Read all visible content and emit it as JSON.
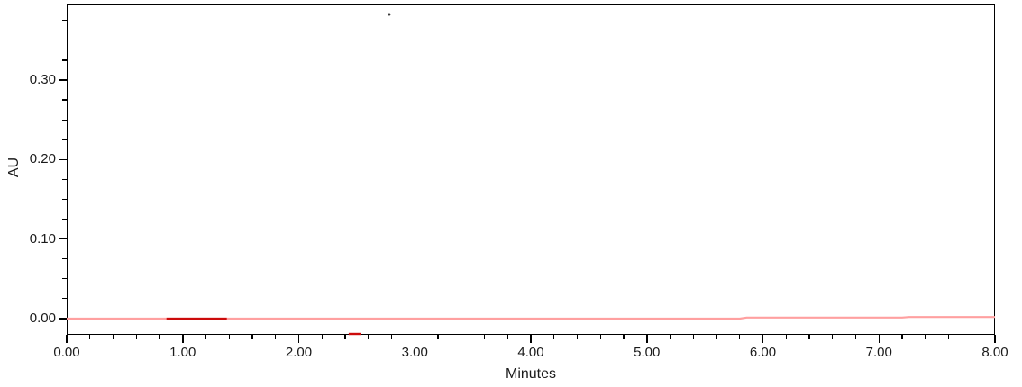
{
  "chart_data": {
    "type": "line",
    "title": "",
    "xlabel": "Minutes",
    "ylabel": "AU",
    "xlim": [
      0,
      8
    ],
    "ylim": [
      -0.0204,
      0.3951
    ],
    "grid": false,
    "legend": false,
    "background_color": "#ffffff",
    "axis_color": "#000000",
    "tick_label_color": "#1a1a1a",
    "x_ticks": {
      "minor_step": 0.2,
      "major": [
        {
          "value": 0,
          "label": "0.00"
        },
        {
          "value": 1,
          "label": "1.00"
        },
        {
          "value": 2,
          "label": "2.00"
        },
        {
          "value": 3,
          "label": "3.00"
        },
        {
          "value": 4,
          "label": "4.00"
        },
        {
          "value": 5,
          "label": "5.00"
        },
        {
          "value": 6,
          "label": "6.00"
        },
        {
          "value": 7,
          "label": "7.00"
        },
        {
          "value": 8,
          "label": "8.00"
        }
      ]
    },
    "y_ticks": {
      "minor_step": 0.025,
      "major": [
        {
          "value": 0.0,
          "label": "0.00"
        },
        {
          "value": 0.1,
          "label": "0.10"
        },
        {
          "value": 0.2,
          "label": "0.20"
        },
        {
          "value": 0.3,
          "label": "0.30"
        }
      ]
    },
    "series": [
      {
        "name": "baseline-trace",
        "color": "#ffa0a0",
        "stroke_width": 2.2,
        "points": [
          [
            0,
            0
          ],
          [
            5.8,
            0
          ],
          [
            5.86,
            0.0013
          ],
          [
            7.2,
            0.0013
          ],
          [
            7.26,
            0.002
          ],
          [
            8,
            0.002
          ]
        ]
      },
      {
        "name": "integrated-region-trace",
        "color": "#cc0b0b",
        "stroke_width": 2.2,
        "points": [
          [
            0.86,
            0
          ],
          [
            1.38,
            0
          ]
        ]
      },
      {
        "name": "baseline-event-marker",
        "color": "#cc0b0b",
        "stroke_width": 2.4,
        "points": [
          [
            2.43,
            -0.0193
          ],
          [
            2.54,
            -0.0193
          ]
        ]
      }
    ],
    "annotations": [
      {
        "type": "dot",
        "x": 2.78,
        "y": 0.3826,
        "color": "#3a3a3a",
        "radius": 1.5
      }
    ]
  }
}
